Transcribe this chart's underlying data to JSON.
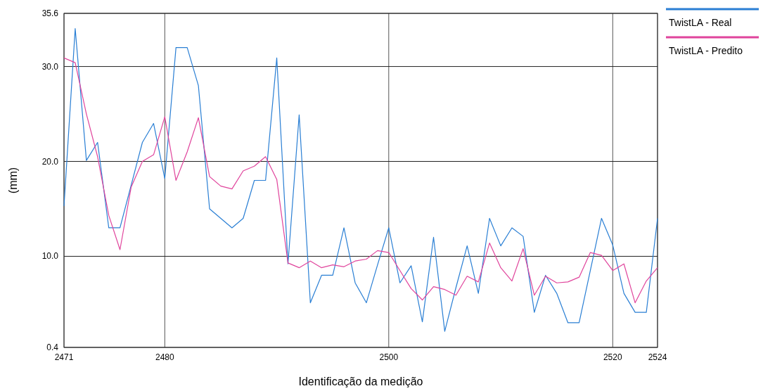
{
  "chart_data": {
    "type": "line",
    "xlabel": "Identificação da medição",
    "ylabel": "(mm)",
    "x": [
      2471,
      2472,
      2473,
      2474,
      2475,
      2476,
      2477,
      2478,
      2479,
      2480,
      2481,
      2482,
      2483,
      2484,
      2485,
      2486,
      2487,
      2488,
      2489,
      2490,
      2491,
      2492,
      2493,
      2494,
      2495,
      2496,
      2497,
      2498,
      2499,
      2500,
      2501,
      2502,
      2503,
      2504,
      2505,
      2506,
      2507,
      2508,
      2509,
      2510,
      2511,
      2512,
      2513,
      2514,
      2515,
      2516,
      2517,
      2518,
      2519,
      2520,
      2521,
      2522,
      2523,
      2524
    ],
    "xlim": [
      2471,
      2524
    ],
    "xticks": [
      2471,
      2480,
      2500,
      2520,
      2524
    ],
    "ylim": [
      0.4,
      35.6
    ],
    "yticks": [
      {
        "value": 0.4,
        "label": "0.4"
      },
      {
        "value": 10,
        "label": "10.0"
      },
      {
        "value": 20,
        "label": "20.0"
      },
      {
        "value": 30,
        "label": "30.0"
      },
      {
        "value": 35.6,
        "label": "35.6"
      }
    ],
    "grid": true,
    "legend": "top right",
    "marker": "none",
    "line_style": "solid",
    "series": [
      {
        "name": "TwistLA - Real",
        "color": "#2a7fd4",
        "values": [
          15.3,
          34.0,
          20.1,
          22.0,
          13.0,
          13.0,
          17.5,
          22.0,
          24.0,
          18.2,
          32.0,
          32.0,
          28.0,
          15.0,
          14.0,
          13.0,
          14.0,
          18.0,
          18.0,
          30.9,
          9.2,
          24.9,
          5.1,
          8.0,
          8.0,
          13.0,
          7.2,
          5.1,
          9.1,
          13.0,
          7.2,
          9.0,
          3.1,
          12.0,
          2.1,
          6.7,
          11.1,
          6.1,
          14.0,
          11.1,
          13.0,
          12.1,
          4.1,
          8.0,
          6.1,
          3.0,
          3.0,
          8.5,
          14.0,
          11.2,
          6.1,
          4.1,
          4.1,
          14.0
        ]
      },
      {
        "name": "TwistLA - Predito",
        "color": "#e0449c",
        "values": [
          30.9,
          30.4,
          25.0,
          20.5,
          14.3,
          10.7,
          17.3,
          20.0,
          20.7,
          24.7,
          18.0,
          21.0,
          24.6,
          18.4,
          17.4,
          17.1,
          19.0,
          19.5,
          20.5,
          18.1,
          9.3,
          8.8,
          9.5,
          8.8,
          9.1,
          8.9,
          9.5,
          9.7,
          10.6,
          10.4,
          8.5,
          6.6,
          5.4,
          6.8,
          6.5,
          5.9,
          7.9,
          7.3,
          11.4,
          8.8,
          7.4,
          10.8,
          5.9,
          7.9,
          7.2,
          7.3,
          7.8,
          10.4,
          10.1,
          8.5,
          9.2,
          5.1,
          7.4,
          8.8
        ]
      }
    ]
  }
}
